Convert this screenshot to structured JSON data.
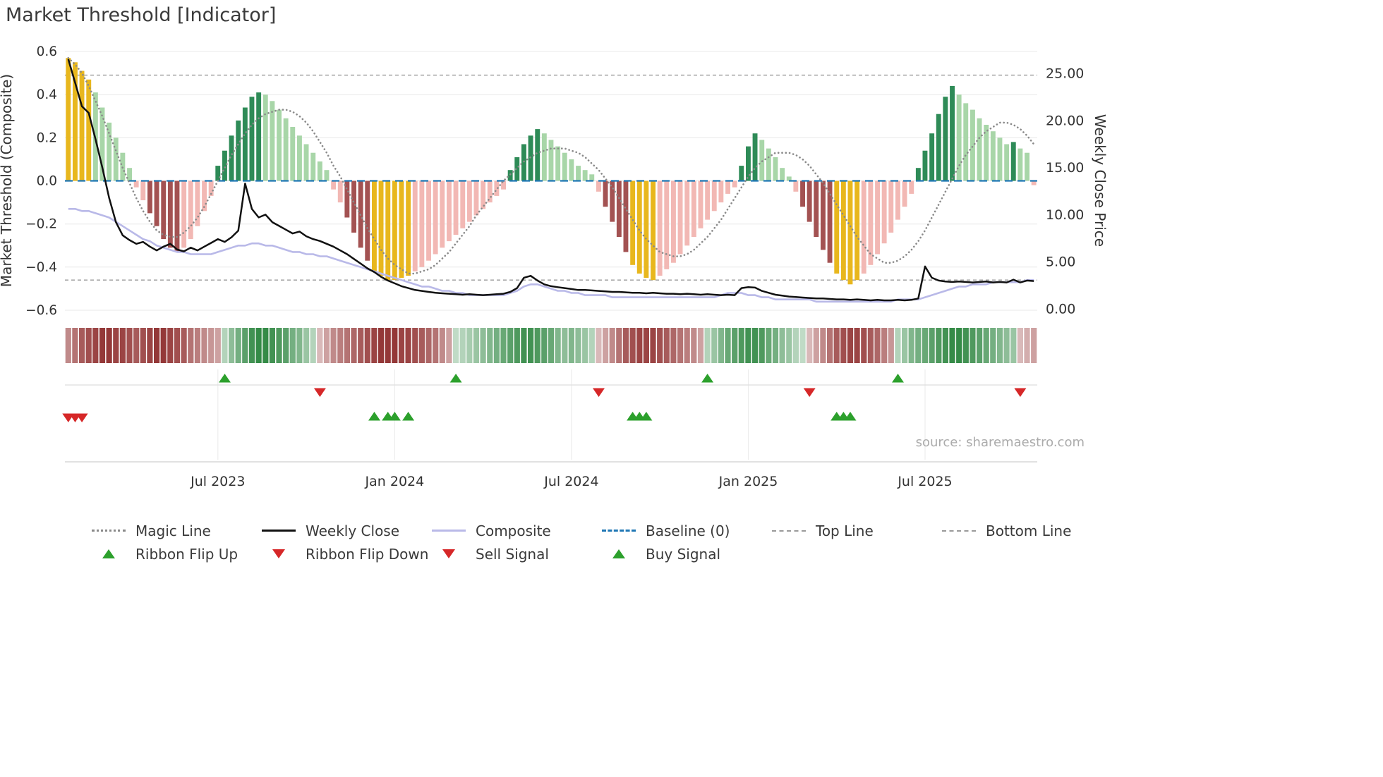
{
  "title": "Market Threshold [Indicator]",
  "source": "source: sharemaestro.com",
  "colors": {
    "gold": "#E8B71D",
    "dark_green": "#2E8B57",
    "light_green": "#A8D6A8",
    "light_pink": "#F2B8B4",
    "dark_red": "#A35252",
    "baseline_blue": "#1F77B4",
    "magic_gray": "#8A8A8A",
    "composite_purple": "#B9B9E8",
    "weekly_close_black": "#111111",
    "threshold_gray": "#9A9A9A",
    "signal_green": "#2CA02C",
    "signal_red": "#D62728",
    "grid": "#E8E8E8",
    "ribbon_red": "#8F2E2E",
    "ribbon_green": "#1E7D32",
    "axis_text": "#333333",
    "source_text": "#ABABAB"
  },
  "axes": {
    "left_label": "Market Threshold (Composite)",
    "right_label": "Weekly Close Price",
    "left_ticks": [
      "0.6",
      "0.4",
      "0.2",
      "0.0",
      "−0.2",
      "−0.4",
      "−0.6"
    ],
    "left_tick_values": [
      0.6,
      0.4,
      0.2,
      0,
      -0.2,
      -0.4,
      -0.6
    ],
    "right_ticks": [
      "25.00",
      "20.00",
      "15.00",
      "10.00",
      "5.00",
      "0.00"
    ],
    "right_tick_values": [
      25,
      20,
      15,
      10,
      5,
      0
    ],
    "x_ticks": [
      "Jul 2023",
      "Jan 2024",
      "Jul 2024",
      "Jan 2025",
      "Jul 2025"
    ],
    "x_tick_weeks": [
      22,
      48,
      74,
      100,
      126
    ],
    "left_range": [
      -0.6,
      0.6
    ],
    "right_range": [
      0,
      25
    ]
  },
  "chart_data": {
    "type": "bar",
    "subtype": "histogram-with-overlay-lines",
    "x_unit": "weeks (Feb 2023 - Oct 2025)",
    "top_line": 0.49,
    "bottom_line": -0.46,
    "baseline": 0,
    "histogram": [
      0.57,
      0.55,
      0.51,
      0.47,
      0.41,
      0.34,
      0.27,
      0.2,
      0.13,
      0.06,
      -0.03,
      -0.09,
      -0.15,
      -0.21,
      -0.27,
      -0.31,
      -0.33,
      -0.31,
      -0.27,
      -0.21,
      -0.14,
      -0.07,
      0.07,
      0.14,
      0.21,
      0.28,
      0.34,
      0.39,
      0.41,
      0.4,
      0.37,
      0.33,
      0.29,
      0.25,
      0.21,
      0.17,
      0.13,
      0.09,
      0.05,
      -0.04,
      -0.1,
      -0.17,
      -0.24,
      -0.31,
      -0.37,
      -0.42,
      -0.44,
      -0.46,
      -0.46,
      -0.45,
      -0.44,
      -0.42,
      -0.4,
      -0.37,
      -0.34,
      -0.31,
      -0.28,
      -0.25,
      -0.22,
      -0.19,
      -0.16,
      -0.13,
      -0.1,
      -0.07,
      -0.04,
      0.05,
      0.11,
      0.17,
      0.21,
      0.24,
      0.22,
      0.19,
      0.16,
      0.13,
      0.1,
      0.07,
      0.05,
      0.03,
      -0.05,
      -0.12,
      -0.19,
      -0.26,
      -0.33,
      -0.39,
      -0.43,
      -0.45,
      -0.46,
      -0.44,
      -0.41,
      -0.38,
      -0.34,
      -0.3,
      -0.26,
      -0.22,
      -0.18,
      -0.14,
      -0.1,
      -0.06,
      -0.03,
      0.07,
      0.16,
      0.22,
      0.19,
      0.15,
      0.11,
      0.06,
      0.02,
      -0.05,
      -0.12,
      -0.19,
      -0.26,
      -0.32,
      -0.38,
      -0.43,
      -0.46,
      -0.48,
      -0.46,
      -0.43,
      -0.39,
      -0.34,
      -0.29,
      -0.24,
      -0.18,
      -0.12,
      -0.06,
      0.06,
      0.14,
      0.22,
      0.31,
      0.39,
      0.44,
      0.4,
      0.36,
      0.33,
      0.29,
      0.26,
      0.23,
      0.2,
      0.17,
      0.18,
      0.15,
      0.13,
      -0.02
    ],
    "bar_styles": [
      "g",
      "g",
      "g",
      "g",
      "lg",
      "lg",
      "lg",
      "lg",
      "lg",
      "lg",
      "p",
      "p",
      "dr",
      "dr",
      "dr",
      "dr",
      "dr",
      "p",
      "p",
      "p",
      "p",
      "p",
      "dg",
      "dg",
      "dg",
      "dg",
      "dg",
      "dg",
      "dg",
      "lg",
      "lg",
      "lg",
      "lg",
      "lg",
      "lg",
      "lg",
      "lg",
      "lg",
      "lg",
      "p",
      "p",
      "dr",
      "dr",
      "dr",
      "dr",
      "g",
      "g",
      "g",
      "g",
      "g",
      "g",
      "p",
      "p",
      "p",
      "p",
      "p",
      "p",
      "p",
      "p",
      "p",
      "p",
      "p",
      "p",
      "p",
      "p",
      "dg",
      "dg",
      "dg",
      "dg",
      "dg",
      "lg",
      "lg",
      "lg",
      "lg",
      "lg",
      "lg",
      "lg",
      "lg",
      "p",
      "dr",
      "dr",
      "dr",
      "dr",
      "g",
      "g",
      "g",
      "g",
      "p",
      "p",
      "p",
      "p",
      "p",
      "p",
      "p",
      "p",
      "p",
      "p",
      "p",
      "p",
      "dg",
      "dg",
      "dg",
      "lg",
      "lg",
      "lg",
      "lg",
      "lg",
      "p",
      "dr",
      "dr",
      "dr",
      "dr",
      "dr",
      "g",
      "g",
      "g",
      "g",
      "p",
      "p",
      "p",
      "p",
      "p",
      "p",
      "p",
      "p",
      "dg",
      "dg",
      "dg",
      "dg",
      "dg",
      "dg",
      "lg",
      "lg",
      "lg",
      "lg",
      "lg",
      "lg",
      "lg",
      "lg",
      "dg",
      "lg",
      "lg",
      "p"
    ],
    "magic_line": [
      0.57,
      0.54,
      0.5,
      0.44,
      0.37,
      0.3,
      0.22,
      0.14,
      0.06,
      -0.01,
      -0.08,
      -0.14,
      -0.19,
      -0.23,
      -0.25,
      -0.26,
      -0.26,
      -0.24,
      -0.21,
      -0.17,
      -0.12,
      -0.06,
      0.0,
      0.06,
      0.12,
      0.17,
      0.22,
      0.26,
      0.29,
      0.31,
      0.32,
      0.33,
      0.33,
      0.32,
      0.3,
      0.27,
      0.23,
      0.18,
      0.13,
      0.07,
      0.02,
      -0.04,
      -0.1,
      -0.16,
      -0.22,
      -0.27,
      -0.32,
      -0.36,
      -0.39,
      -0.41,
      -0.43,
      -0.43,
      -0.42,
      -0.41,
      -0.39,
      -0.36,
      -0.33,
      -0.29,
      -0.25,
      -0.21,
      -0.16,
      -0.12,
      -0.08,
      -0.04,
      0.0,
      0.03,
      0.06,
      0.09,
      0.11,
      0.13,
      0.14,
      0.15,
      0.15,
      0.15,
      0.14,
      0.13,
      0.11,
      0.08,
      0.05,
      0.01,
      -0.03,
      -0.08,
      -0.13,
      -0.18,
      -0.23,
      -0.27,
      -0.3,
      -0.33,
      -0.34,
      -0.35,
      -0.35,
      -0.34,
      -0.32,
      -0.29,
      -0.26,
      -0.22,
      -0.18,
      -0.13,
      -0.08,
      -0.03,
      0.02,
      0.06,
      0.09,
      0.11,
      0.13,
      0.13,
      0.13,
      0.12,
      0.1,
      0.07,
      0.03,
      -0.01,
      -0.06,
      -0.11,
      -0.16,
      -0.21,
      -0.26,
      -0.3,
      -0.34,
      -0.36,
      -0.38,
      -0.38,
      -0.37,
      -0.35,
      -0.32,
      -0.28,
      -0.23,
      -0.17,
      -0.11,
      -0.05,
      0.01,
      0.07,
      0.12,
      0.16,
      0.2,
      0.23,
      0.25,
      0.27,
      0.27,
      0.26,
      0.24,
      0.21,
      0.17
    ],
    "composite_line": [
      -0.13,
      -0.13,
      -0.14,
      -0.14,
      -0.15,
      -0.16,
      -0.17,
      -0.19,
      -0.21,
      -0.23,
      -0.25,
      -0.27,
      -0.28,
      -0.3,
      -0.31,
      -0.32,
      -0.33,
      -0.33,
      -0.34,
      -0.34,
      -0.34,
      -0.34,
      -0.33,
      -0.32,
      -0.31,
      -0.3,
      -0.3,
      -0.29,
      -0.29,
      -0.3,
      -0.3,
      -0.31,
      -0.32,
      -0.33,
      -0.33,
      -0.34,
      -0.34,
      -0.35,
      -0.35,
      -0.36,
      -0.37,
      -0.38,
      -0.39,
      -0.4,
      -0.41,
      -0.42,
      -0.43,
      -0.44,
      -0.45,
      -0.46,
      -0.47,
      -0.48,
      -0.49,
      -0.49,
      -0.5,
      -0.51,
      -0.51,
      -0.52,
      -0.52,
      -0.53,
      -0.53,
      -0.53,
      -0.53,
      -0.53,
      -0.53,
      -0.52,
      -0.51,
      -0.49,
      -0.48,
      -0.48,
      -0.49,
      -0.5,
      -0.51,
      -0.51,
      -0.52,
      -0.52,
      -0.53,
      -0.53,
      -0.53,
      -0.53,
      -0.54,
      -0.54,
      -0.54,
      -0.54,
      -0.54,
      -0.54,
      -0.54,
      -0.54,
      -0.54,
      -0.54,
      -0.54,
      -0.54,
      -0.54,
      -0.54,
      -0.54,
      -0.54,
      -0.53,
      -0.52,
      -0.52,
      -0.52,
      -0.53,
      -0.53,
      -0.54,
      -0.54,
      -0.55,
      -0.55,
      -0.55,
      -0.55,
      -0.55,
      -0.55,
      -0.56,
      -0.56,
      -0.56,
      -0.56,
      -0.56,
      -0.56,
      -0.56,
      -0.56,
      -0.56,
      -0.56,
      -0.56,
      -0.56,
      -0.55,
      -0.55,
      -0.55,
      -0.55,
      -0.54,
      -0.53,
      -0.52,
      -0.51,
      -0.5,
      -0.49,
      -0.49,
      -0.48,
      -0.48,
      -0.48,
      -0.47,
      -0.47,
      -0.47,
      -0.47,
      -0.47,
      -0.46,
      -0.46
    ],
    "weekly_close_price": [
      26.5,
      24.0,
      21.5,
      20.8,
      18.0,
      15.0,
      11.8,
      9.2,
      7.8,
      7.3,
      6.9,
      7.1,
      6.6,
      6.2,
      6.6,
      6.9,
      6.3,
      6.1,
      6.5,
      6.2,
      6.6,
      7.0,
      7.4,
      7.1,
      7.6,
      8.3,
      13.3,
      10.6,
      9.7,
      10.0,
      9.2,
      8.8,
      8.4,
      8.0,
      8.2,
      7.7,
      7.4,
      7.2,
      6.9,
      6.6,
      6.2,
      5.8,
      5.3,
      4.8,
      4.3,
      3.9,
      3.4,
      3.0,
      2.7,
      2.4,
      2.2,
      2.0,
      1.9,
      1.8,
      1.7,
      1.65,
      1.6,
      1.55,
      1.5,
      1.55,
      1.5,
      1.45,
      1.5,
      1.55,
      1.6,
      1.8,
      2.2,
      3.3,
      3.5,
      3.0,
      2.6,
      2.4,
      2.3,
      2.2,
      2.1,
      2.0,
      2.0,
      1.95,
      1.9,
      1.85,
      1.8,
      1.8,
      1.75,
      1.7,
      1.7,
      1.65,
      1.7,
      1.65,
      1.6,
      1.6,
      1.55,
      1.6,
      1.55,
      1.5,
      1.55,
      1.5,
      1.45,
      1.5,
      1.45,
      2.2,
      2.3,
      2.25,
      1.9,
      1.7,
      1.5,
      1.4,
      1.3,
      1.25,
      1.2,
      1.15,
      1.1,
      1.1,
      1.05,
      1.0,
      1.0,
      0.95,
      1.0,
      0.95,
      0.9,
      0.95,
      0.9,
      0.9,
      0.95,
      0.9,
      0.95,
      1.1,
      4.5,
      3.3,
      3.0,
      2.9,
      2.85,
      2.9,
      2.85,
      2.8,
      2.85,
      2.9,
      2.8,
      2.85,
      2.8,
      3.1,
      2.8,
      3.0,
      2.95
    ],
    "ribbon": [
      -0.5,
      -0.6,
      -0.7,
      -0.75,
      -0.8,
      -0.85,
      -0.85,
      -0.8,
      -0.8,
      -0.75,
      -0.7,
      -0.75,
      -0.8,
      -0.85,
      -0.85,
      -0.8,
      -0.75,
      -0.7,
      -0.6,
      -0.55,
      -0.5,
      -0.45,
      -0.4,
      0.3,
      0.45,
      0.55,
      0.65,
      0.75,
      0.8,
      0.8,
      0.75,
      0.7,
      0.65,
      0.55,
      0.5,
      0.4,
      0.3,
      -0.3,
      -0.4,
      -0.5,
      -0.55,
      -0.6,
      -0.65,
      -0.7,
      -0.75,
      -0.8,
      -0.85,
      -0.85,
      -0.85,
      -0.8,
      -0.8,
      -0.75,
      -0.7,
      -0.65,
      -0.6,
      -0.5,
      -0.4,
      0.25,
      0.3,
      0.35,
      0.4,
      0.45,
      0.5,
      0.55,
      0.6,
      0.65,
      0.7,
      0.75,
      0.75,
      0.7,
      0.65,
      0.6,
      0.5,
      0.45,
      0.5,
      0.45,
      0.4,
      0.3,
      -0.3,
      -0.4,
      -0.5,
      -0.6,
      -0.7,
      -0.75,
      -0.8,
      -0.8,
      -0.8,
      -0.75,
      -0.7,
      -0.65,
      -0.6,
      -0.55,
      -0.5,
      -0.4,
      0.3,
      0.4,
      0.5,
      0.6,
      0.65,
      0.7,
      0.75,
      0.75,
      0.7,
      0.6,
      0.55,
      0.45,
      0.4,
      0.3,
      0.25,
      -0.3,
      -0.4,
      -0.5,
      -0.6,
      -0.7,
      -0.75,
      -0.8,
      -0.8,
      -0.75,
      -0.7,
      -0.65,
      -0.55,
      -0.45,
      0.3,
      0.4,
      0.5,
      0.55,
      0.6,
      0.65,
      0.7,
      0.75,
      0.8,
      0.8,
      0.75,
      0.7,
      0.65,
      0.6,
      0.55,
      0.5,
      0.45,
      0.4,
      -0.3,
      -0.35,
      -0.4
    ],
    "signals": {
      "ribbon_flip_up_weeks": [
        23,
        57,
        94,
        122
      ],
      "ribbon_flip_down_weeks": [
        37,
        78,
        109,
        140
      ],
      "buy_signal_weeks": [
        45,
        47,
        48,
        50,
        83,
        84,
        85,
        113,
        114,
        115
      ],
      "sell_signal_weeks": [
        0,
        1,
        2
      ]
    }
  },
  "legend": {
    "row1": [
      {
        "label": "Magic Line",
        "swatch": "dotted-gray"
      },
      {
        "label": "Weekly Close",
        "swatch": "solid-black"
      },
      {
        "label": "Composite",
        "swatch": "solid-purple"
      },
      {
        "label": "Baseline (0)",
        "swatch": "dashed-blue"
      },
      {
        "label": "Top Line",
        "swatch": "dashed-gray"
      },
      {
        "label": "Bottom Line",
        "swatch": "dashed-gray"
      }
    ],
    "row2": [
      {
        "label": "Ribbon Flip Up",
        "swatch": "triangle-up-green"
      },
      {
        "label": "Ribbon Flip Down",
        "swatch": "triangle-down-red"
      },
      {
        "label": "Sell Signal",
        "swatch": "triangle-down-red"
      },
      {
        "label": "Buy Signal",
        "swatch": "triangle-up-green"
      }
    ]
  }
}
